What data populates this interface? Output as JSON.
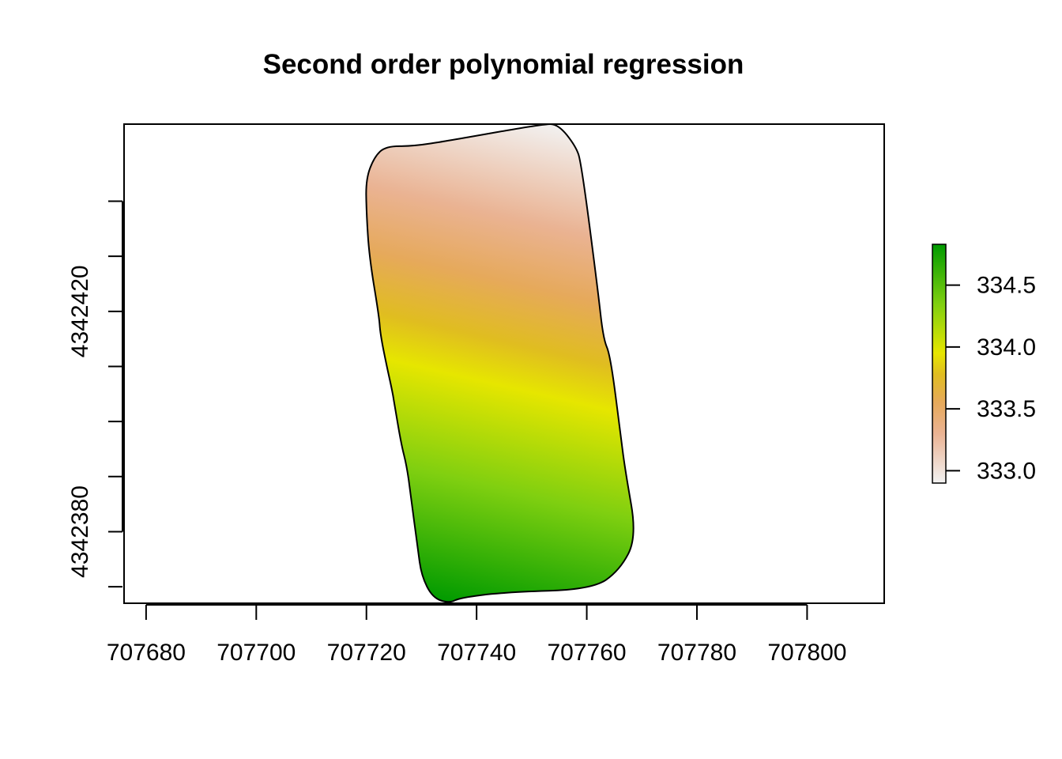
{
  "chart_data": {
    "type": "heatmap",
    "title": "Second order polynomial regression",
    "xlabel": "",
    "ylabel": "",
    "xlim": [
      707676,
      707814
    ],
    "ylim": [
      4342367,
      4342454
    ],
    "x_ticks": [
      707680,
      707700,
      707720,
      707740,
      707760,
      707780,
      707800
    ],
    "x_tick_labels": [
      "707680",
      "707700",
      "707720",
      "707740",
      "707760",
      "707780",
      "707800"
    ],
    "y_ticks": [
      4342380,
      4342400,
      4342420,
      4342440
    ],
    "y_tick_labels": [
      "4342380",
      "",
      "4342420",
      ""
    ],
    "legend": {
      "placement": "right",
      "min": 332.9,
      "max": 334.83,
      "ticks": [
        334.5,
        334.0,
        333.5,
        333.0
      ],
      "tick_labels": [
        "334.5",
        "334.0",
        "333.5",
        "333.0"
      ]
    },
    "colormap": [
      {
        "value": 332.9,
        "color": "#f2f2f2"
      },
      {
        "value": 333.3,
        "color": "#eab393"
      },
      {
        "value": 333.55,
        "color": "#e6a95b"
      },
      {
        "value": 333.78,
        "color": "#e0bd20"
      },
      {
        "value": 333.95,
        "color": "#e6e600"
      },
      {
        "value": 334.35,
        "color": "#7fcf10"
      },
      {
        "value": 334.83,
        "color": "#009a00"
      }
    ],
    "field_boundary": [
      [
        707728.5,
        4342450
      ],
      [
        707735,
        4342451
      ],
      [
        707752,
        4342454
      ],
      [
        707754.8,
        4342454
      ],
      [
        707758,
        4342450
      ],
      [
        707759,
        4342447
      ],
      [
        707762,
        4342424
      ],
      [
        707763,
        4342415
      ],
      [
        707764.3,
        4342412
      ],
      [
        707766.2,
        4342397
      ],
      [
        707767,
        4342391
      ],
      [
        707769.1,
        4342379
      ],
      [
        707766,
        4342373
      ],
      [
        707761,
        4342369.5
      ],
      [
        707745,
        4342369
      ],
      [
        707737,
        4342368
      ],
      [
        707735,
        4342367
      ],
      [
        707732,
        4342368
      ],
      [
        707730,
        4342372
      ],
      [
        707729.3,
        4342377
      ],
      [
        707728,
        4342387
      ],
      [
        707727.3,
        4342392
      ],
      [
        707726.3,
        4342396
      ],
      [
        707725.1,
        4342403
      ],
      [
        707724.8,
        4342405
      ],
      [
        707723.7,
        4342410
      ],
      [
        707722.5,
        4342416
      ],
      [
        707722.3,
        4342419
      ],
      [
        707720.5,
        4342430
      ],
      [
        707720,
        4342438
      ],
      [
        707719.9,
        4342444
      ],
      [
        707721.4,
        4342448
      ],
      [
        707723.5,
        4342450
      ]
    ],
    "gradient_axis": {
      "low_corner": [
        707735,
        4342367
      ],
      "high_corner": [
        707754.8,
        4342454
      ]
    }
  }
}
